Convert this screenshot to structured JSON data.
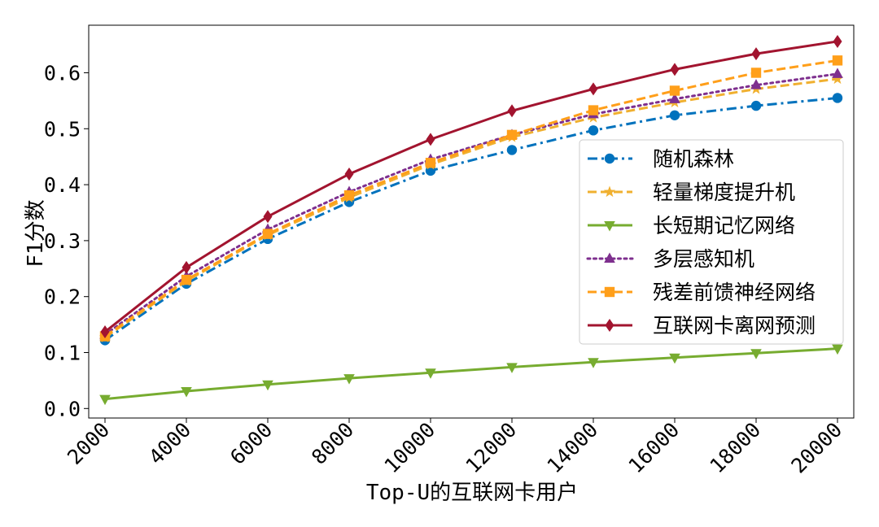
{
  "chart_data": {
    "type": "line",
    "xlabel": "Top-U的互联网卡用户",
    "ylabel": "F1分数",
    "x": [
      2000,
      4000,
      6000,
      8000,
      10000,
      12000,
      14000,
      16000,
      18000,
      20000
    ],
    "x_tick_labels": [
      "2000",
      "4000",
      "6000",
      "8000",
      "10000",
      "12000",
      "14000",
      "16000",
      "18000",
      "20000"
    ],
    "y_ticks": [
      0.0,
      0.1,
      0.2,
      0.3,
      0.4,
      0.5,
      0.6
    ],
    "y_tick_labels": [
      "0.0",
      "0.1",
      "0.2",
      "0.3",
      "0.4",
      "0.5",
      "0.6"
    ],
    "xlim": [
      1600,
      20400
    ],
    "ylim": [
      -0.017,
      0.685
    ],
    "grid": false,
    "legend_position": "center-right",
    "series": [
      {
        "name": "随机森林",
        "color": "#0072bd",
        "line_style": "dash-dot",
        "marker": "circle",
        "values": [
          0.122,
          0.223,
          0.303,
          0.369,
          0.425,
          0.462,
          0.497,
          0.524,
          0.541,
          0.555
        ]
      },
      {
        "name": "轻量梯度提升机",
        "color": "#f0b030",
        "line_style": "dashed",
        "marker": "star",
        "values": [
          0.127,
          0.228,
          0.31,
          0.377,
          0.436,
          0.485,
          0.52,
          0.547,
          0.571,
          0.589
        ]
      },
      {
        "name": "长短期记忆网络",
        "color": "#77ac30",
        "line_style": "solid",
        "marker": "triangle-down",
        "values": [
          0.017,
          0.031,
          0.043,
          0.054,
          0.064,
          0.074,
          0.083,
          0.091,
          0.099,
          0.107
        ]
      },
      {
        "name": "多层感知机",
        "color": "#7e2f8e",
        "line_style": "dotted",
        "marker": "triangle-up",
        "values": [
          0.132,
          0.236,
          0.32,
          0.387,
          0.445,
          0.489,
          0.526,
          0.553,
          0.578,
          0.598
        ]
      },
      {
        "name": "残差前馈神经网络",
        "color": "#ff9f1a",
        "line_style": "dashed",
        "marker": "square",
        "values": [
          0.129,
          0.23,
          0.312,
          0.381,
          0.439,
          0.489,
          0.533,
          0.568,
          0.6,
          0.622
        ]
      },
      {
        "name": "互联网卡离网预测",
        "color": "#a2142f",
        "line_style": "solid",
        "marker": "diamond",
        "values": [
          0.137,
          0.252,
          0.343,
          0.419,
          0.481,
          0.532,
          0.571,
          0.606,
          0.634,
          0.656
        ]
      }
    ]
  }
}
